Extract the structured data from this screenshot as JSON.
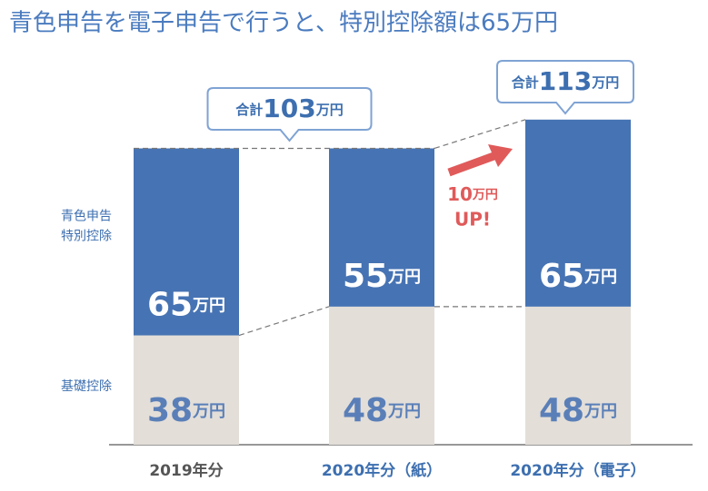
{
  "chart_data": {
    "type": "stacked-bar",
    "title": "青色申告を電子申告で行うと、特別控除額は65万円",
    "categories": [
      "2019年分",
      "2020年分（紙）",
      "2020年分（電子）"
    ],
    "category_colors": [
      "#555555",
      "#3d6fb0",
      "#3d6fb0"
    ],
    "series": [
      {
        "name": "基礎控除",
        "color": "#e3ded8",
        "values": [
          38,
          48,
          48
        ],
        "value_labels": [
          "38万円",
          "48万円",
          "48万円"
        ]
      },
      {
        "name": "青色申告特別控除",
        "color": "#4673b3",
        "values": [
          65,
          55,
          65
        ],
        "value_labels": [
          "65万円",
          "55万円",
          "65万円"
        ]
      }
    ],
    "totals": [
      {
        "label": "合計",
        "value": 103,
        "unit": "万円"
      },
      {
        "label": "合計",
        "value": 113,
        "unit": "万円"
      }
    ],
    "annotation": [
      "10万円",
      "UP!"
    ],
    "annotation_color": "#e05a5a"
  }
}
